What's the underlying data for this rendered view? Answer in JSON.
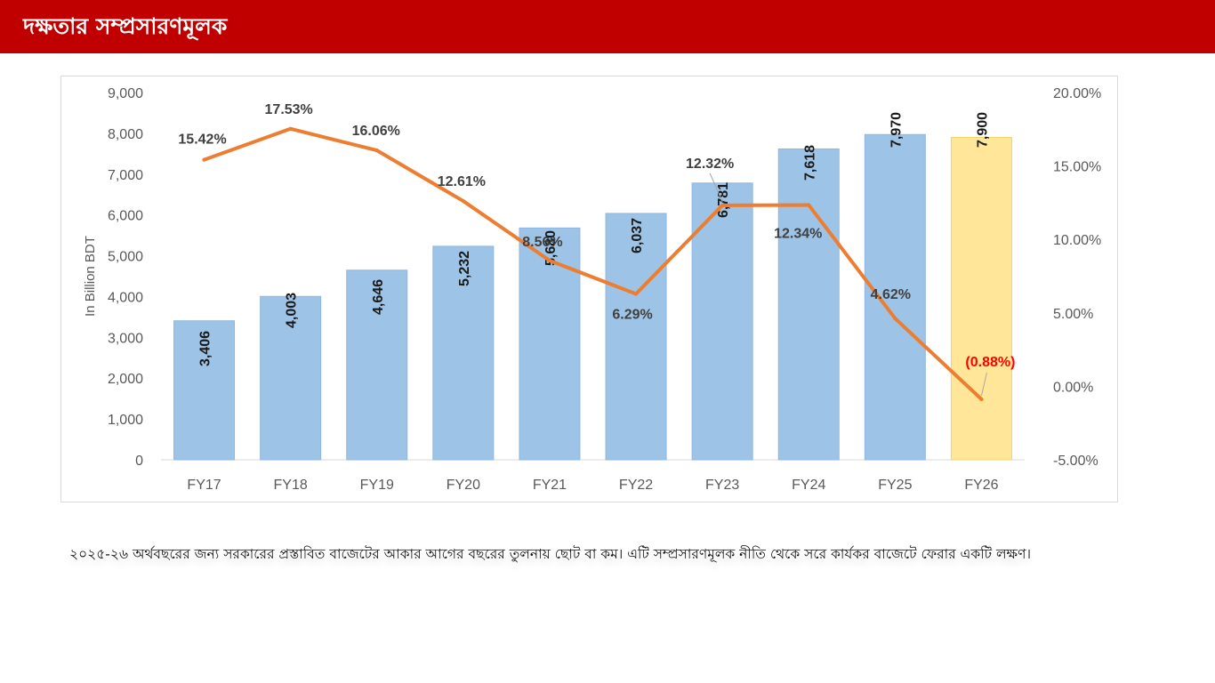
{
  "header": {
    "title": "দক্ষতার সম্প্রসারণমূলক"
  },
  "chart_data": {
    "type": "bar",
    "categories": [
      "FY17",
      "FY18",
      "FY19",
      "FY20",
      "FY21",
      "FY22",
      "FY23",
      "FY24",
      "FY25",
      "FY26"
    ],
    "series": [
      {
        "kind": "bar",
        "axis": "left",
        "values": [
          3406,
          4003,
          4646,
          5232,
          5680,
          6037,
          6781,
          7618,
          7970,
          7900
        ],
        "labels": [
          "3,406",
          "4,003",
          "4,646",
          "5,232",
          "5,680",
          "6,037",
          "6,781",
          "7,618",
          "7,970",
          "7,900"
        ]
      },
      {
        "kind": "line",
        "axis": "right",
        "values": [
          15.42,
          17.53,
          16.06,
          12.61,
          8.56,
          6.29,
          12.32,
          12.34,
          4.62,
          -0.88
        ],
        "labels": [
          "15.42%",
          "17.53%",
          "16.06%",
          "12.61%",
          "8.56%",
          "6.29%",
          "12.32%",
          "12.34%",
          "4.62%",
          "(0.88%)"
        ]
      }
    ],
    "ylabel": "In Billion BDT",
    "ylim": [
      0,
      9000
    ],
    "y_ticks": [
      "0",
      "1,000",
      "2,000",
      "3,000",
      "4,000",
      "5,000",
      "6,000",
      "7,000",
      "8,000",
      "9,000"
    ],
    "y2lim": [
      -5,
      20
    ],
    "y2_ticks": [
      "-5.00%",
      "0.00%",
      "5.00%",
      "10.00%",
      "15.00%",
      "20.00%"
    ],
    "gridlines": false,
    "legend": "none",
    "colors": {
      "bar": "#9dc3e6",
      "bar_highlight": "#ffe699",
      "line": "#ed7d31",
      "negative_label": "#ff0000",
      "axis_text": "#595959",
      "label_text": "#404040"
    }
  },
  "caption": {
    "text": "২০২৫-২৬ অর্থবছরের জন্য সরকারের প্রস্তাবিত বাজেটের আকার আগের বছরের তুলনায় ছোট বা কম। এটি সম্প্রসারণমূলক নীতি থেকে সরে কার্যকর বাজেটে ফেরার একটি লক্ষণ।"
  }
}
